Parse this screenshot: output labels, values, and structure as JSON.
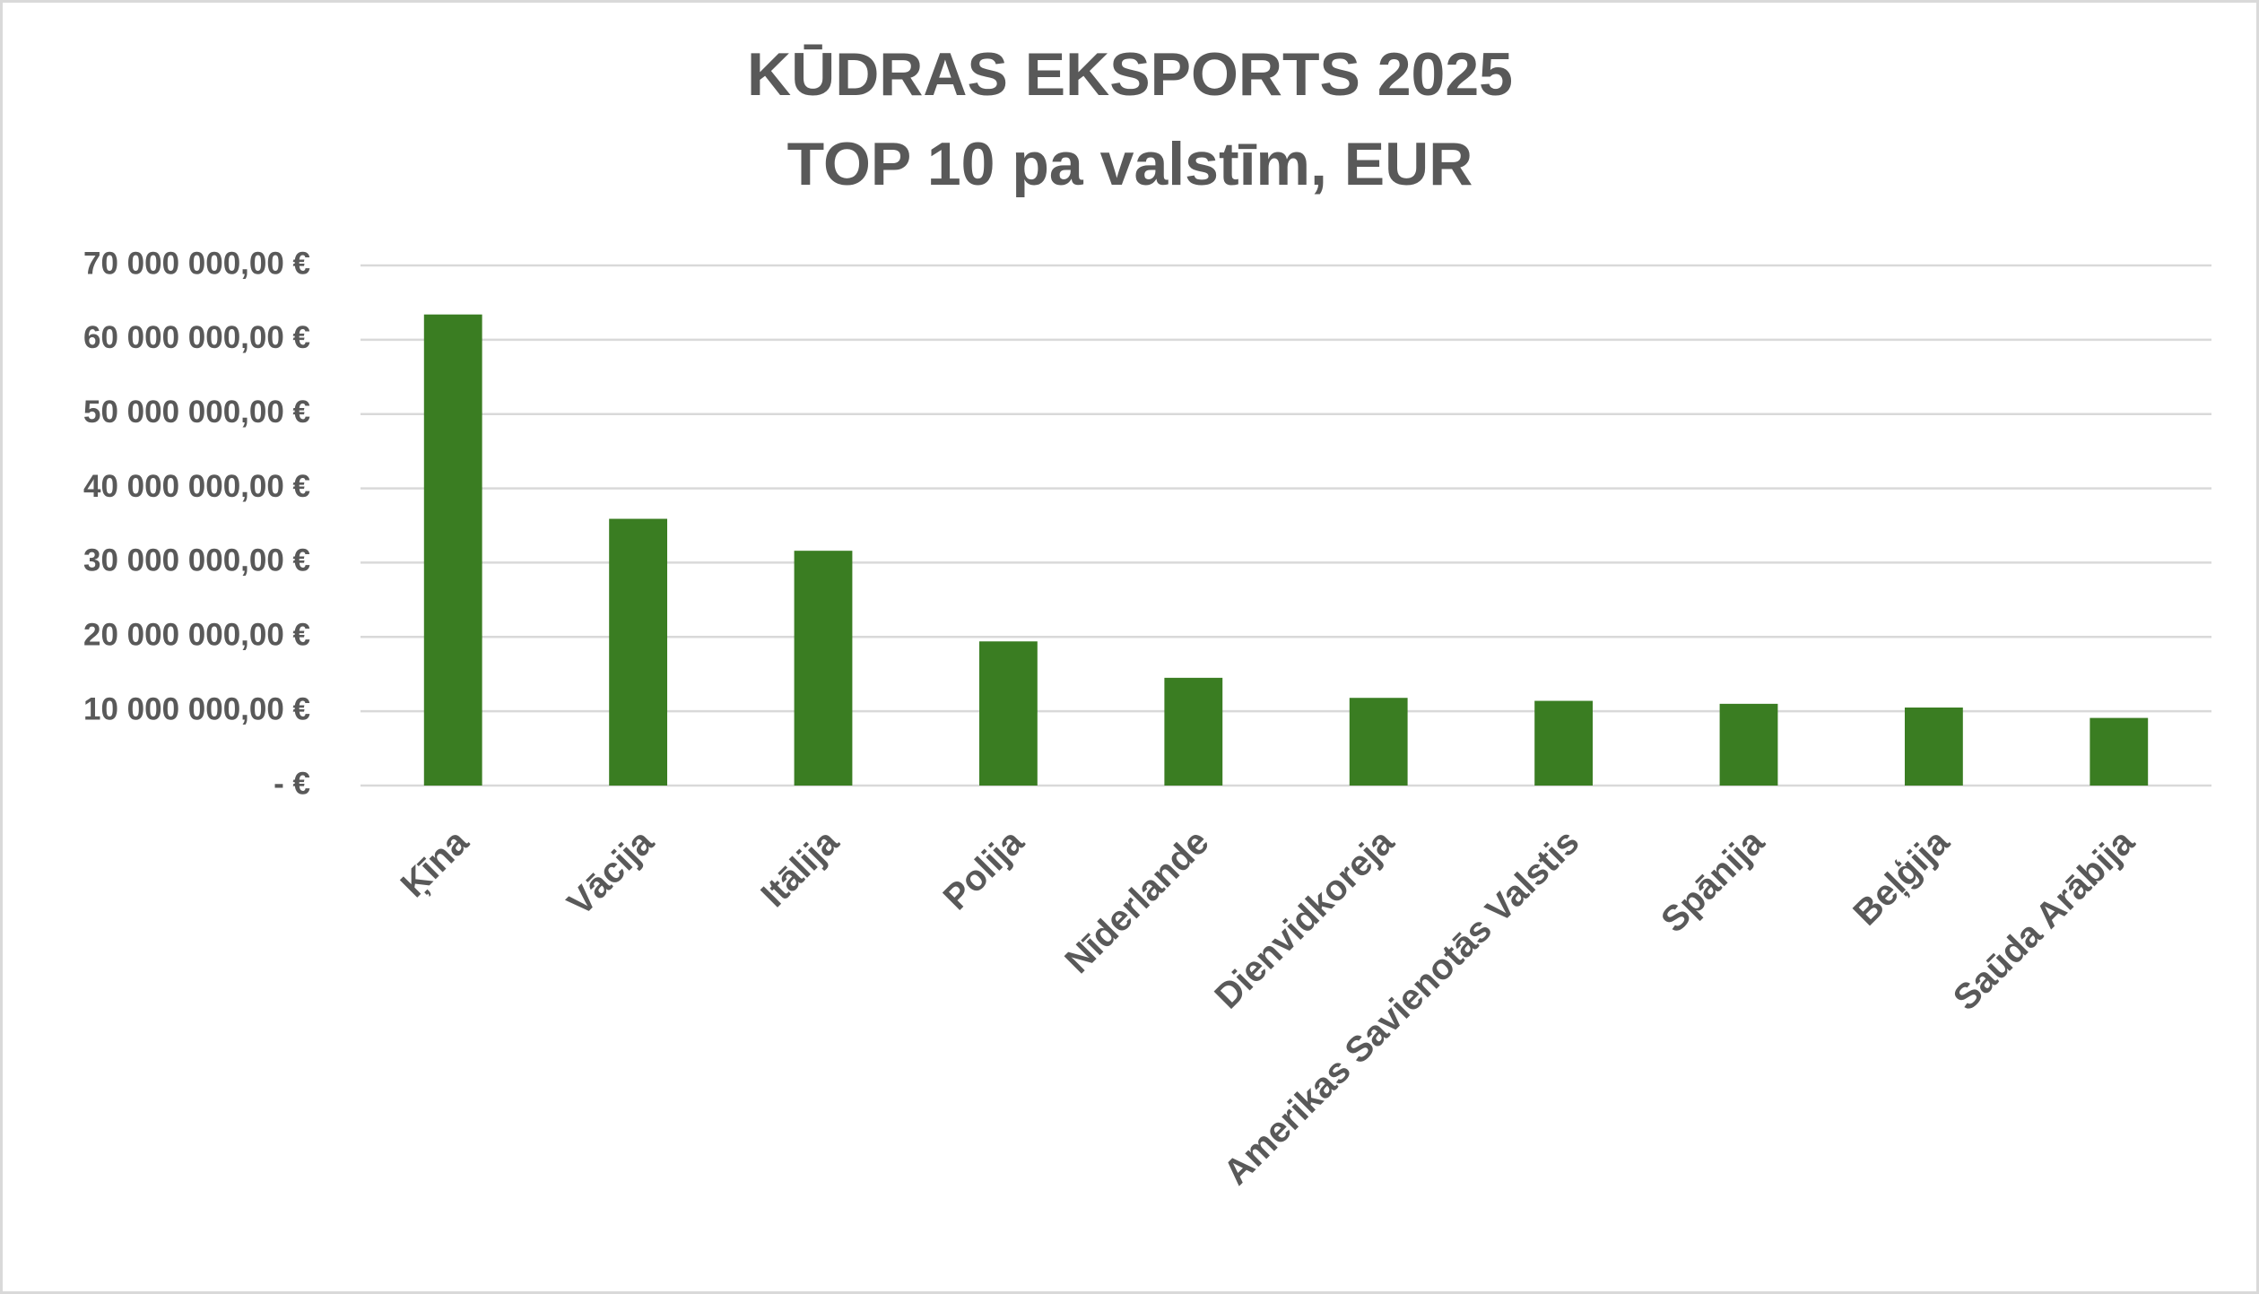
{
  "chart_data": {
    "type": "bar",
    "title": "KŪDRAS EKSPORTS 2025",
    "subtitle": "TOP 10 pa valstīm, EUR",
    "categories": [
      "Ķīna",
      "Vācija",
      "Itālija",
      "Polija",
      "Nīderlande",
      "Dienvidkoreja",
      "Amerikas Savienotās Valstis",
      "Spānija",
      "Beļģija",
      "Saūda Arābija"
    ],
    "values": [
      63400000,
      35900000,
      31600000,
      19400000,
      14500000,
      11800000,
      11400000,
      11000000,
      10500000,
      9100000
    ],
    "color": "#3a7d22",
    "ylim": [
      0,
      70000000
    ],
    "yticks": [
      {
        "value": 0,
        "label": "-  €"
      },
      {
        "value": 10000000,
        "label": "10 000 000,00 €"
      },
      {
        "value": 20000000,
        "label": "20 000 000,00 €"
      },
      {
        "value": 30000000,
        "label": "30 000 000,00 €"
      },
      {
        "value": 40000000,
        "label": "40 000 000,00 €"
      },
      {
        "value": 50000000,
        "label": "50 000 000,00 €"
      },
      {
        "value": 60000000,
        "label": "60 000 000,00 €"
      },
      {
        "value": 70000000,
        "label": "70 000 000,00 €"
      }
    ],
    "grid": true
  }
}
